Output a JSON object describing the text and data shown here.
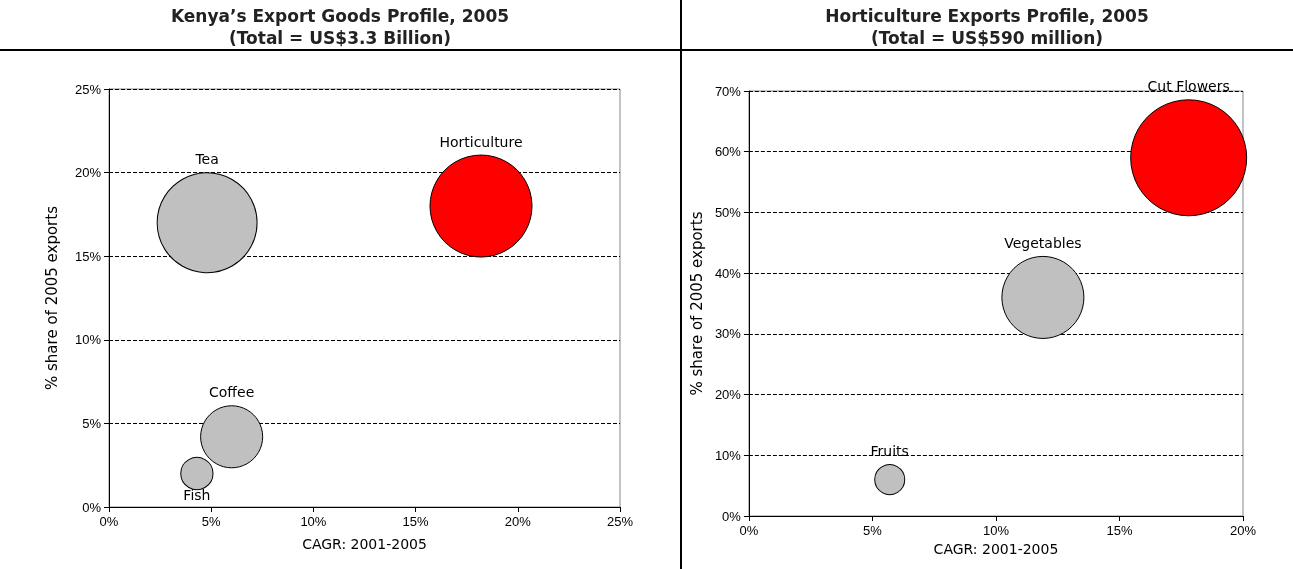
{
  "chart_data": [
    {
      "type": "bubble",
      "title": "Kenya’s Export Goods Profile, 2005\n(Total = US$3.3 Billion)",
      "xlabel": "CAGR: 2001-2005",
      "ylabel": "% share of 2005 exports",
      "series": [
        {
          "name": "Tea",
          "color": "#c0c0c0",
          "x": [
            4.8
          ],
          "values": [
            17
          ],
          "sizes": [
            0.96
          ]
        },
        {
          "name": "Horticulture",
          "color": "#ff0000",
          "x": [
            18.2
          ],
          "values": [
            18
          ],
          "sizes": [
            1
          ]
        },
        {
          "name": "Coffee",
          "color": "#c0c0c0",
          "x": [
            6.0
          ],
          "values": [
            4.2
          ],
          "sizes": [
            0.37
          ]
        },
        {
          "name": "Fish",
          "color": "#c0c0c0",
          "x": [
            4.3
          ],
          "values": [
            2
          ],
          "sizes": [
            0.1
          ]
        }
      ],
      "xlim": [
        0,
        25
      ],
      "xticks": [
        {
          "value": 0,
          "label": "0%"
        },
        {
          "value": 5,
          "label": "5%"
        },
        {
          "value": 10,
          "label": "10%"
        },
        {
          "value": 15,
          "label": "15%"
        },
        {
          "value": 20,
          "label": "20%"
        },
        {
          "value": 25,
          "label": "25%"
        }
      ],
      "ylim": [
        0,
        25
      ],
      "yticks": [
        {
          "value": 0,
          "label": "0%"
        },
        {
          "value": 5,
          "label": "5%"
        },
        {
          "value": 10,
          "label": "10%"
        },
        {
          "value": 15,
          "label": "15%"
        },
        {
          "value": 20,
          "label": "20%"
        },
        {
          "value": 25,
          "label": "25%"
        }
      ],
      "grid": "y",
      "legend": false
    },
    {
      "type": "bubble",
      "title": "Horticulture Exports Profile, 2005\n(Total = US$590 million)",
      "xlabel": "CAGR: 2001-2005",
      "ylabel": "% share of 2005 exports",
      "series": [
        {
          "name": "Cut Flowers",
          "color": "#ff0000",
          "x": [
            17.8
          ],
          "values": [
            59
          ],
          "sizes": [
            1
          ]
        },
        {
          "name": "Vegetables",
          "color": "#c0c0c0",
          "x": [
            11.9
          ],
          "values": [
            36
          ],
          "sizes": [
            0.5
          ]
        },
        {
          "name": "Fruits",
          "color": "#c0c0c0",
          "x": [
            5.7
          ],
          "values": [
            6
          ],
          "sizes": [
            0.067
          ]
        }
      ],
      "xlim": [
        0,
        20
      ],
      "xticks": [
        {
          "value": 0,
          "label": "0%"
        },
        {
          "value": 5,
          "label": "5%"
        },
        {
          "value": 10,
          "label": "10%"
        },
        {
          "value": 15,
          "label": "15%"
        },
        {
          "value": 20,
          "label": "20%"
        }
      ],
      "ylim": [
        0,
        70
      ],
      "yticks": [
        {
          "value": 0,
          "label": "0%"
        },
        {
          "value": 10,
          "label": "10%"
        },
        {
          "value": 20,
          "label": "20%"
        },
        {
          "value": 30,
          "label": "30%"
        },
        {
          "value": 40,
          "label": "40%"
        },
        {
          "value": 50,
          "label": "50%"
        },
        {
          "value": 60,
          "label": "60%"
        },
        {
          "value": 70,
          "label": "70%"
        }
      ],
      "grid": "y",
      "legend": false
    }
  ]
}
